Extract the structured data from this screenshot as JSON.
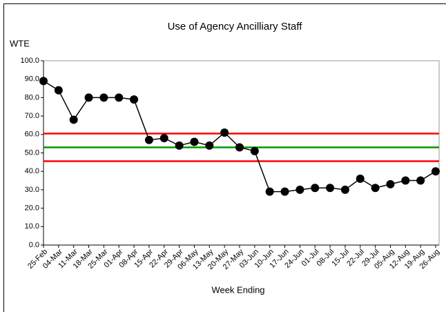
{
  "chart_data": {
    "type": "line",
    "title": "Use of Agency Ancilliary Staff",
    "y_label": "WTE",
    "x_label": "Week Ending",
    "categories": [
      "25-Feb",
      "04-Mar",
      "11-Mar",
      "18-Mar",
      "25-Mar",
      "01-Apr",
      "08-Apr",
      "15-Apr",
      "22-Apr",
      "29-Apr",
      "06-May",
      "13-May",
      "20-May",
      "27-May",
      "03-Jun",
      "10-Jun",
      "17-Jun",
      "24-Jun",
      "01-Jul",
      "08-Jul",
      "15-Jul",
      "22-Jul",
      "29-Jul",
      "05-Aug",
      "12-Aug",
      "19-Aug",
      "26-Aug"
    ],
    "values": [
      89,
      84,
      68,
      80,
      80,
      80,
      79,
      57,
      58,
      54,
      56,
      54,
      61,
      53,
      51,
      29,
      29,
      30,
      31,
      31,
      30,
      36,
      31,
      33,
      35,
      35,
      40
    ],
    "color": "#000000",
    "reference_lines": [
      {
        "value": 60.5,
        "color": "#ff0000"
      },
      {
        "value": 53,
        "color": "#009900"
      },
      {
        "value": 45.5,
        "color": "#ff0000"
      }
    ],
    "ylim": [
      0,
      100
    ],
    "yticks": [
      {
        "value": 0,
        "label": "0.0"
      },
      {
        "value": 10,
        "label": "10.0"
      },
      {
        "value": 20,
        "label": "20.0"
      },
      {
        "value": 30,
        "label": "30.0"
      },
      {
        "value": 40,
        "label": "40.0"
      },
      {
        "value": 50,
        "label": "50.0"
      },
      {
        "value": 60,
        "label": "60.0"
      },
      {
        "value": 70,
        "label": "70.0"
      },
      {
        "value": 80,
        "label": "80.0"
      },
      {
        "value": 90,
        "label": "90.0"
      },
      {
        "value": 100,
        "label": "100.0"
      }
    ],
    "grid": false
  }
}
